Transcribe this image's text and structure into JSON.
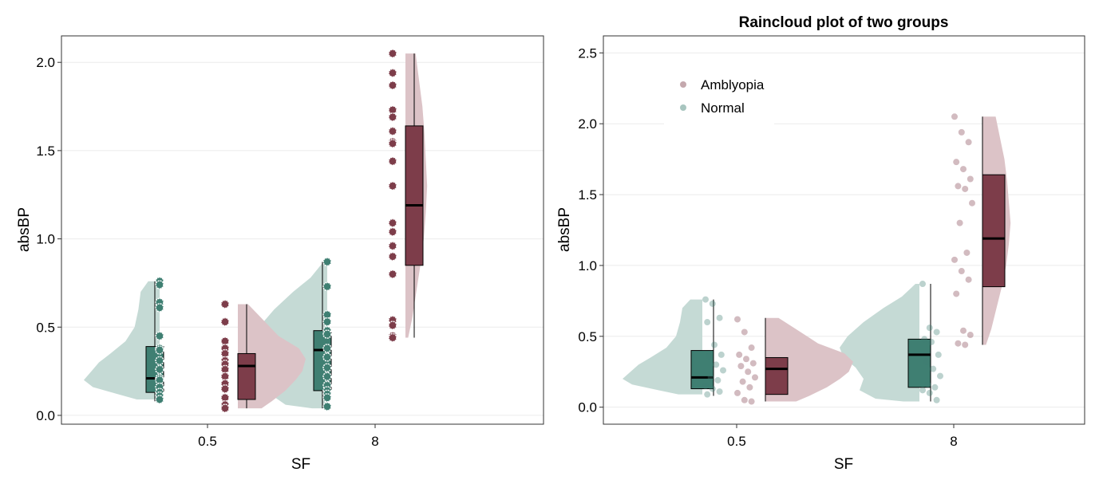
{
  "colors": {
    "normal": "#3f7f72",
    "amblyopia": "#7d3d4a",
    "normal_light": "#c5dad5",
    "amblyopia_light": "#dcc3c7",
    "grid": "#ebebeb",
    "frame": "#333333"
  },
  "chart_data": [
    {
      "type": "raincloud",
      "title": "",
      "xlabel": "SF",
      "ylabel": "absBP",
      "categories": [
        "0.5",
        "8"
      ],
      "ylim": [
        -0.05,
        2.15
      ],
      "yticks": [
        "0.0",
        "0.5",
        "1.0",
        "1.5",
        "2.0"
      ],
      "grid": true,
      "legend": null,
      "series": [
        {
          "group": "Normal",
          "color": "normal",
          "boxes": [
            {
              "category": "0.5",
              "q1": 0.13,
              "median": 0.21,
              "q3": 0.39,
              "min": 0.08,
              "max": 0.76
            },
            {
              "category": "8",
              "q1": 0.14,
              "median": 0.37,
              "q3": 0.48,
              "min": 0.04,
              "max": 0.87
            }
          ],
          "points": [
            {
              "category": "0.5",
              "y": [
                0.76,
                0.74,
                0.64,
                0.61,
                0.45,
                0.38,
                0.37,
                0.31,
                0.26,
                0.21,
                0.2,
                0.16,
                0.13,
                0.11,
                0.09
              ]
            },
            {
              "category": "8",
              "y": [
                0.87,
                0.73,
                0.57,
                0.53,
                0.48,
                0.46,
                0.38,
                0.33,
                0.27,
                0.22,
                0.17,
                0.14,
                0.12,
                0.1,
                0.05
              ]
            }
          ],
          "density": [
            {
              "category": "0.5",
              "y": [
                0.76,
                0.7,
                0.6,
                0.5,
                0.42,
                0.35,
                0.3,
                0.25,
                0.2,
                0.16,
                0.12,
                0.09
              ],
              "w": [
                0.15,
                0.25,
                0.28,
                0.33,
                0.45,
                0.65,
                0.8,
                0.9,
                1.0,
                0.88,
                0.55,
                0.3
              ]
            },
            {
              "category": "8",
              "y": [
                0.87,
                0.78,
                0.7,
                0.6,
                0.5,
                0.42,
                0.35,
                0.28,
                0.2,
                0.12,
                0.06,
                0.04
              ],
              "w": [
                0.05,
                0.22,
                0.45,
                0.7,
                0.9,
                1.0,
                0.95,
                0.8,
                0.7,
                0.75,
                0.55,
                0.2
              ]
            }
          ]
        },
        {
          "group": "Amblyopia",
          "color": "amblyopia",
          "boxes": [
            {
              "category": "0.5",
              "q1": 0.09,
              "median": 0.28,
              "q3": 0.35,
              "min": 0.04,
              "max": 0.63
            },
            {
              "category": "8",
              "q1": 0.85,
              "median": 1.19,
              "q3": 1.64,
              "min": 0.44,
              "max": 2.05
            }
          ],
          "points": [
            {
              "category": "0.5",
              "y": [
                0.63,
                0.53,
                0.42,
                0.38,
                0.35,
                0.31,
                0.29,
                0.26,
                0.22,
                0.18,
                0.15,
                0.1,
                0.06,
                0.04
              ]
            },
            {
              "category": "8",
              "y": [
                2.05,
                1.94,
                1.87,
                1.73,
                1.69,
                1.61,
                1.55,
                1.54,
                1.44,
                1.3,
                1.09,
                1.04,
                0.96,
                0.9,
                0.8,
                0.54,
                0.51,
                0.45,
                0.44
              ]
            }
          ],
          "density": [
            {
              "category": "0.5",
              "y": [
                0.63,
                0.55,
                0.45,
                0.38,
                0.32,
                0.25,
                0.2,
                0.14,
                0.08,
                0.04
              ],
              "w": [
                0.15,
                0.35,
                0.6,
                0.9,
                1.0,
                0.95,
                0.85,
                0.7,
                0.5,
                0.35
              ]
            },
            {
              "category": "8",
              "y": [
                2.05,
                1.9,
                1.75,
                1.6,
                1.45,
                1.3,
                1.15,
                1.0,
                0.85,
                0.7,
                0.55,
                0.44
              ],
              "w": [
                0.15,
                0.2,
                0.25,
                0.28,
                0.3,
                0.32,
                0.3,
                0.27,
                0.22,
                0.16,
                0.1,
                0.04
              ]
            }
          ]
        }
      ]
    },
    {
      "type": "raincloud",
      "title": "Raincloud plot of two groups",
      "xlabel": "SF",
      "ylabel": "absBP",
      "categories": [
        "0.5",
        "8"
      ],
      "ylim": [
        -0.12,
        2.62
      ],
      "yticks": [
        "0.0",
        "0.5",
        "1.0",
        "1.5",
        "2.0",
        "2.5"
      ],
      "grid": true,
      "legend": {
        "position": "top-left",
        "entries": [
          "Amblyopia",
          "Normal"
        ]
      },
      "series": [
        {
          "group": "Normal",
          "color": "normal",
          "boxes": [
            {
              "category": "0.5",
              "q1": 0.13,
              "median": 0.21,
              "q3": 0.4,
              "min": 0.08,
              "max": 0.76
            },
            {
              "category": "8",
              "q1": 0.14,
              "median": 0.37,
              "q3": 0.48,
              "min": 0.04,
              "max": 0.87
            }
          ],
          "points": [
            {
              "category": "0.5",
              "y": [
                0.76,
                0.73,
                0.63,
                0.6,
                0.44,
                0.37,
                0.36,
                0.3,
                0.26,
                0.21,
                0.19,
                0.15,
                0.13,
                0.11,
                0.09
              ]
            },
            {
              "category": "8",
              "y": [
                0.87,
                0.56,
                0.53,
                0.48,
                0.46,
                0.37,
                0.32,
                0.27,
                0.22,
                0.16,
                0.14,
                0.12,
                0.1,
                0.05
              ]
            }
          ],
          "density": [
            {
              "category": "0.5",
              "y": [
                0.76,
                0.7,
                0.6,
                0.5,
                0.42,
                0.35,
                0.3,
                0.25,
                0.2,
                0.16,
                0.12,
                0.09
              ],
              "w": [
                0.15,
                0.25,
                0.28,
                0.33,
                0.45,
                0.65,
                0.8,
                0.9,
                1.0,
                0.88,
                0.55,
                0.3
              ]
            },
            {
              "category": "8",
              "y": [
                0.87,
                0.78,
                0.7,
                0.6,
                0.5,
                0.42,
                0.35,
                0.28,
                0.2,
                0.12,
                0.06,
                0.04
              ],
              "w": [
                0.05,
                0.22,
                0.45,
                0.7,
                0.9,
                1.0,
                0.95,
                0.8,
                0.7,
                0.75,
                0.55,
                0.2
              ]
            }
          ]
        },
        {
          "group": "Amblyopia",
          "color": "amblyopia",
          "boxes": [
            {
              "category": "0.5",
              "q1": 0.09,
              "median": 0.27,
              "q3": 0.35,
              "min": 0.04,
              "max": 0.63
            },
            {
              "category": "8",
              "q1": 0.85,
              "median": 1.19,
              "q3": 1.64,
              "min": 0.44,
              "max": 2.05
            }
          ],
          "points": [
            {
              "category": "0.5",
              "y": [
                0.62,
                0.53,
                0.42,
                0.37,
                0.34,
                0.31,
                0.29,
                0.25,
                0.21,
                0.18,
                0.14,
                0.1,
                0.05,
                0.04
              ]
            },
            {
              "category": "8",
              "y": [
                2.05,
                1.94,
                1.87,
                1.73,
                1.68,
                1.61,
                1.56,
                1.54,
                1.44,
                1.3,
                1.09,
                1.04,
                0.96,
                0.9,
                0.8,
                0.54,
                0.51,
                0.45,
                0.44
              ]
            }
          ],
          "density": [
            {
              "category": "0.5",
              "y": [
                0.63,
                0.55,
                0.45,
                0.38,
                0.32,
                0.25,
                0.2,
                0.14,
                0.08,
                0.04
              ],
              "w": [
                0.15,
                0.35,
                0.6,
                0.9,
                1.0,
                0.95,
                0.85,
                0.7,
                0.5,
                0.35
              ]
            },
            {
              "category": "8",
              "y": [
                2.05,
                1.9,
                1.75,
                1.6,
                1.45,
                1.3,
                1.15,
                1.0,
                0.85,
                0.7,
                0.55,
                0.44
              ],
              "w": [
                0.15,
                0.2,
                0.25,
                0.28,
                0.3,
                0.32,
                0.3,
                0.27,
                0.22,
                0.16,
                0.1,
                0.04
              ]
            }
          ]
        }
      ]
    }
  ]
}
